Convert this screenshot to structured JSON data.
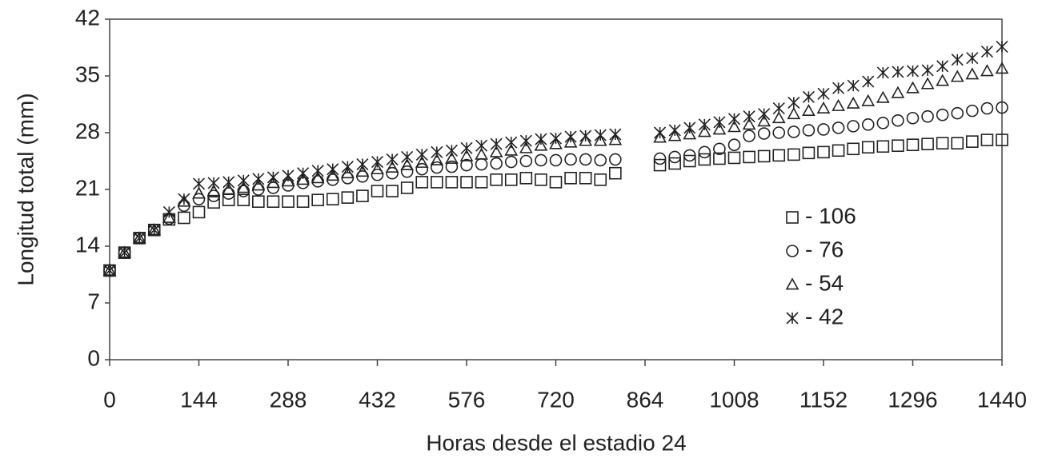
{
  "chart_data": {
    "type": "scatter",
    "x_label": "Horas desde el estadio 24",
    "y_label": "Longitud total (mm)",
    "x": [
      0,
      24,
      48,
      72,
      96,
      120,
      144,
      168,
      192,
      216,
      240,
      264,
      288,
      312,
      336,
      360,
      384,
      408,
      432,
      456,
      480,
      504,
      528,
      552,
      576,
      600,
      624,
      648,
      672,
      696,
      720,
      744,
      768,
      792,
      816,
      888,
      912,
      936,
      960,
      984,
      1008,
      1032,
      1056,
      1080,
      1104,
      1128,
      1152,
      1176,
      1200,
      1224,
      1248,
      1272,
      1296,
      1320,
      1344,
      1368,
      1392,
      1416,
      1440
    ],
    "series": [
      {
        "name": "- 106",
        "marker": "square",
        "color": "#222222",
        "values": [
          11,
          13.2,
          15,
          16,
          17.3,
          17.5,
          18.2,
          19.4,
          19.7,
          19.7,
          19.5,
          19.5,
          19.5,
          19.5,
          19.7,
          19.8,
          20,
          20.2,
          20.8,
          20.8,
          21.2,
          21.9,
          21.9,
          21.9,
          21.9,
          21.9,
          22.2,
          22.2,
          22.4,
          22.2,
          21.9,
          22.4,
          22.4,
          22.2,
          23,
          24,
          24.2,
          24.5,
          24.7,
          24.8,
          24.9,
          25,
          25.1,
          25.2,
          25.3,
          25.5,
          25.6,
          25.8,
          26,
          26.2,
          26.3,
          26.4,
          26.5,
          26.6,
          26.7,
          26.7,
          26.9,
          27.1,
          27.1
        ]
      },
      {
        "name": "- 76",
        "marker": "circle",
        "color": "#222222",
        "values": [
          11,
          13.2,
          15,
          16,
          17.4,
          19,
          19.8,
          20.2,
          20.5,
          20.8,
          21,
          21.2,
          21.5,
          21.8,
          22,
          22.2,
          22.4,
          22.6,
          22.8,
          23,
          23.2,
          23.5,
          23.7,
          23.8,
          24,
          24.1,
          24.2,
          24.4,
          24.5,
          24.6,
          24.6,
          24.7,
          24.7,
          24.6,
          24.7,
          24.8,
          25,
          25.2,
          25.6,
          26,
          26.5,
          27.6,
          27.9,
          28,
          28.1,
          28.3,
          28.4,
          28.6,
          28.8,
          29,
          29.2,
          29.5,
          29.8,
          30,
          30.2,
          30.4,
          30.7,
          31,
          31.1
        ]
      },
      {
        "name": "- 54",
        "marker": "triangle",
        "color": "#222222",
        "values": [
          11,
          13.2,
          15,
          16,
          17.5,
          19.5,
          20.5,
          20.8,
          21,
          21.2,
          21.5,
          21.8,
          22,
          22.2,
          22.4,
          22.7,
          23,
          23.2,
          23.5,
          23.7,
          24,
          24.3,
          24.6,
          24.8,
          25.1,
          25.3,
          25.6,
          25.8,
          26.1,
          26.4,
          26.6,
          26.8,
          27,
          27,
          27.1,
          27.4,
          27.6,
          27.8,
          28.1,
          28.4,
          28.7,
          29,
          29.4,
          29.8,
          30.3,
          30.7,
          31,
          31.3,
          31.6,
          31.9,
          32.3,
          32.9,
          33.5,
          34,
          34.4,
          34.9,
          35.2,
          35.6,
          35.9
        ]
      },
      {
        "name": "- 42",
        "marker": "asterisk",
        "color": "#222222",
        "values": [
          11,
          13.2,
          15,
          16,
          18.2,
          19.8,
          21.7,
          21.8,
          21.9,
          22.1,
          22.3,
          22.5,
          22.7,
          23,
          23.3,
          23.5,
          23.8,
          24.1,
          24.4,
          24.7,
          25,
          25.3,
          25.6,
          25.8,
          26.1,
          26.4,
          26.6,
          26.8,
          27,
          27.2,
          27.3,
          27.5,
          27.6,
          27.7,
          27.8,
          28,
          28.3,
          28.6,
          29,
          29.3,
          29.7,
          30,
          30.3,
          31,
          31.7,
          32.4,
          32.8,
          33.5,
          33.8,
          34.3,
          35.4,
          35.5,
          35.6,
          35.7,
          36.2,
          37,
          37.2,
          38,
          38.6
        ]
      }
    ],
    "xlim": [
      0,
      1440
    ],
    "xticks": [
      0,
      144,
      288,
      432,
      576,
      720,
      864,
      1008,
      1152,
      1296,
      1440
    ],
    "ylim": [
      0,
      42
    ],
    "yticks": [
      0,
      7,
      14,
      21,
      28,
      35,
      42
    ],
    "grid": false,
    "legend": "right"
  }
}
